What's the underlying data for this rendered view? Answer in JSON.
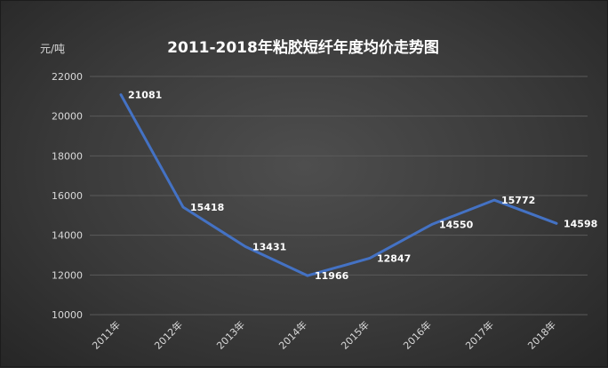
{
  "chart_data": {
    "type": "line",
    "title": "2011-2018年粘胶短纤年度均价走势图",
    "ylabel": "元/吨",
    "xlabel": "",
    "categories": [
      "2011年",
      "2012年",
      "2013年",
      "2014年",
      "2015年",
      "2016年",
      "2017年",
      "2018年"
    ],
    "series": [
      {
        "values": [
          21081,
          15418,
          13431,
          11966,
          12847,
          14550,
          15772,
          14598
        ]
      }
    ],
    "ylim": [
      10000,
      22000
    ],
    "yticks": [
      10000,
      12000,
      14000,
      16000,
      18000,
      20000,
      22000
    ],
    "grid": true,
    "legend": "none",
    "data_labels": true,
    "colors": {
      "line": "#4472c4",
      "background": "#3a3a3a",
      "text": "#ffffff",
      "grid": "#5a5a5a"
    }
  }
}
